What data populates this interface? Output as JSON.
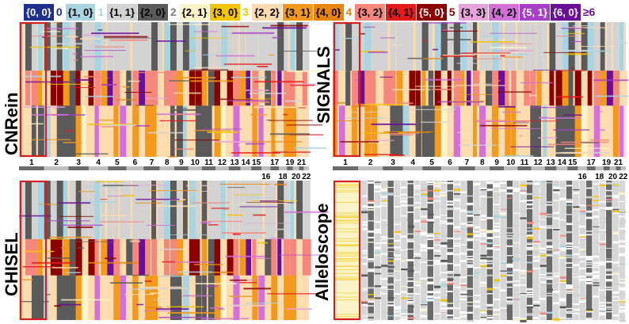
{
  "legend": [
    {
      "label": "{0, 0}",
      "color": "#1f2f8c",
      "text": "#ffffff"
    },
    {
      "label": "0",
      "total": true,
      "color": "#1f2f8c"
    },
    {
      "label": "{1, 0}",
      "color": "#a9d4e2",
      "text": "#000000"
    },
    {
      "label": "1",
      "total": true,
      "color": "#a9d4e2"
    },
    {
      "label": "{1, 1}",
      "color": "#d3d3d3",
      "text": "#000000"
    },
    {
      "label": "{2, 0}",
      "color": "#5a5a5a",
      "text": "#000000"
    },
    {
      "label": "2",
      "total": true,
      "color": "#808080"
    },
    {
      "label": "{2, 1}",
      "color": "#fbf4c8",
      "text": "#000000"
    },
    {
      "label": "{3, 0}",
      "color": "#f5c400",
      "text": "#000000"
    },
    {
      "label": "3",
      "total": true,
      "color": "#f5c400"
    },
    {
      "label": "{2, 2}",
      "color": "#fddcb0",
      "text": "#000000"
    },
    {
      "label": "{3, 1}",
      "color": "#f39a1e",
      "text": "#000000"
    },
    {
      "label": "{4, 0}",
      "color": "#e88510",
      "text": "#000000"
    },
    {
      "label": "4",
      "total": true,
      "color": "#e88510"
    },
    {
      "label": "{3, 2}",
      "color": "#f5877c",
      "text": "#000000"
    },
    {
      "label": "{4, 1}",
      "color": "#e51b1b",
      "text": "#000000"
    },
    {
      "label": "{5, 0}",
      "color": "#8b0000",
      "text": "#ffffff"
    },
    {
      "label": "5",
      "total": true,
      "color": "#8b0000"
    },
    {
      "label": "{3, 3}",
      "color": "#e7a3dc",
      "text": "#000000"
    },
    {
      "label": "{4, 2}",
      "color": "#d470d8",
      "text": "#000000"
    },
    {
      "label": "{5, 1}",
      "color": "#a740c8",
      "text": "#ffffff"
    },
    {
      "label": "{6, 0}",
      "color": "#6a0f96",
      "text": "#ffffff"
    },
    {
      "label": "≥6",
      "total": true,
      "color": "#6a0f96"
    }
  ],
  "chromosomes": [
    "1",
    "2",
    "3",
    "4",
    "5",
    "6",
    "7",
    "8",
    "9",
    "10",
    "11",
    "12",
    "13",
    "14",
    "15",
    "16",
    "17",
    "18",
    "19",
    "20",
    "21",
    "22"
  ],
  "panels": [
    {
      "method": "CNRein",
      "id": "cnrein"
    },
    {
      "method": "SIGNALS",
      "id": "signals"
    },
    {
      "method": "CHISEL",
      "id": "chisel"
    },
    {
      "method": "Alleloscope",
      "id": "alleloscope"
    }
  ]
}
